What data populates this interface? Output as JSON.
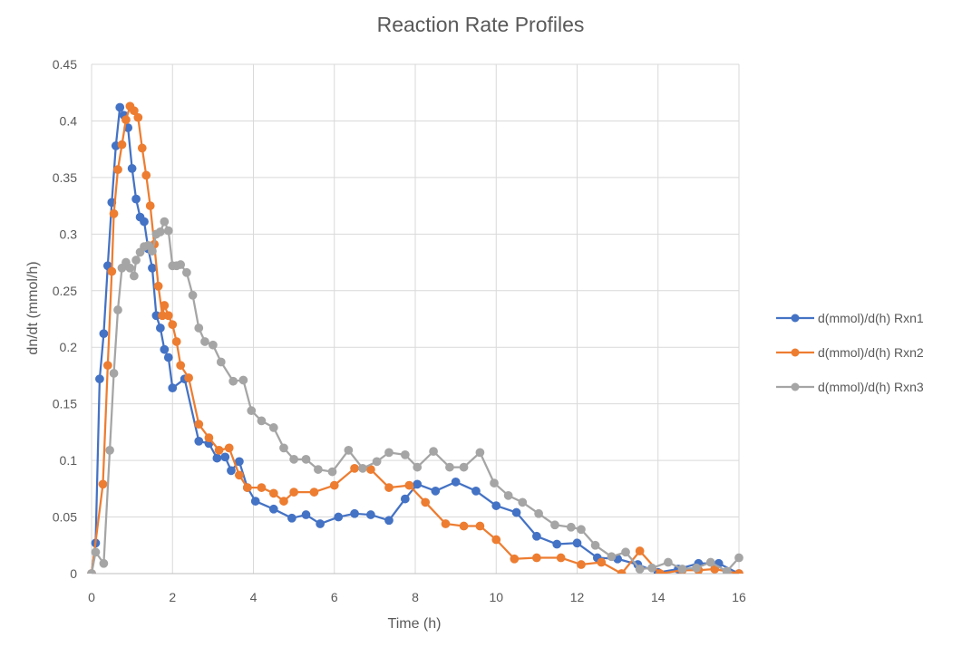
{
  "chart_data": {
    "type": "line",
    "title": "Reaction Rate Profiles",
    "xlabel": "Time (h)",
    "ylabel": "dn/dt (mmol/h)",
    "xlim": [
      0,
      16
    ],
    "ylim": [
      0,
      0.45
    ],
    "xticks": [
      0,
      2,
      4,
      6,
      8,
      10,
      12,
      14,
      16
    ],
    "yticks": [
      0,
      0.05,
      0.1,
      0.15,
      0.2,
      0.25,
      0.3,
      0.35,
      0.4,
      0.45
    ],
    "xtick_labels": [
      "0",
      "2",
      "4",
      "6",
      "8",
      "10",
      "12",
      "14",
      "16"
    ],
    "ytick_labels": [
      "0",
      "0.05",
      "0.1",
      "0.15",
      "0.2",
      "0.25",
      "0.3",
      "0.35",
      "0.4",
      "0.45"
    ],
    "grid": true,
    "legend_position": "right",
    "series": [
      {
        "name": "d(mmol)/d(h) Rxn1",
        "color": "#4472C4",
        "points": [
          [
            0.0,
            0.0
          ],
          [
            0.1,
            0.027
          ],
          [
            0.2,
            0.172
          ],
          [
            0.3,
            0.212
          ],
          [
            0.4,
            0.272
          ],
          [
            0.5,
            0.328
          ],
          [
            0.6,
            0.378
          ],
          [
            0.7,
            0.412
          ],
          [
            0.8,
            0.405
          ],
          [
            0.9,
            0.394
          ],
          [
            1.0,
            0.358
          ],
          [
            1.1,
            0.331
          ],
          [
            1.2,
            0.315
          ],
          [
            1.3,
            0.311
          ],
          [
            1.4,
            0.287
          ],
          [
            1.5,
            0.27
          ],
          [
            1.6,
            0.228
          ],
          [
            1.7,
            0.217
          ],
          [
            1.8,
            0.198
          ],
          [
            1.9,
            0.191
          ],
          [
            2.0,
            0.164
          ],
          [
            2.3,
            0.172
          ],
          [
            2.65,
            0.117
          ],
          [
            2.9,
            0.115
          ],
          [
            3.1,
            0.102
          ],
          [
            3.3,
            0.103
          ],
          [
            3.45,
            0.091
          ],
          [
            3.65,
            0.099
          ],
          [
            3.85,
            0.076
          ],
          [
            4.05,
            0.064
          ],
          [
            4.5,
            0.057
          ],
          [
            4.95,
            0.049
          ],
          [
            5.3,
            0.052
          ],
          [
            5.65,
            0.044
          ],
          [
            6.1,
            0.05
          ],
          [
            6.5,
            0.053
          ],
          [
            6.9,
            0.052
          ],
          [
            7.35,
            0.047
          ],
          [
            7.75,
            0.066
          ],
          [
            8.05,
            0.079
          ],
          [
            8.5,
            0.073
          ],
          [
            9.0,
            0.081
          ],
          [
            9.5,
            0.073
          ],
          [
            10.0,
            0.06
          ],
          [
            10.5,
            0.054
          ],
          [
            11.0,
            0.033
          ],
          [
            11.5,
            0.026
          ],
          [
            12.0,
            0.027
          ],
          [
            12.5,
            0.014
          ],
          [
            13.0,
            0.013
          ],
          [
            13.5,
            0.008
          ],
          [
            14.0,
            0.001
          ],
          [
            14.5,
            0.004
          ],
          [
            15.0,
            0.009
          ],
          [
            15.5,
            0.009
          ],
          [
            16.0,
            0.0
          ]
        ]
      },
      {
        "name": "d(mmol)/d(h) Rxn2",
        "color": "#ED7D31",
        "points": [
          [
            0.0,
            0.0
          ],
          [
            0.28,
            0.079
          ],
          [
            0.4,
            0.184
          ],
          [
            0.5,
            0.267
          ],
          [
            0.55,
            0.318
          ],
          [
            0.65,
            0.357
          ],
          [
            0.75,
            0.379
          ],
          [
            0.85,
            0.401
          ],
          [
            0.95,
            0.413
          ],
          [
            1.05,
            0.409
          ],
          [
            1.15,
            0.403
          ],
          [
            1.25,
            0.376
          ],
          [
            1.35,
            0.352
          ],
          [
            1.45,
            0.325
          ],
          [
            1.55,
            0.291
          ],
          [
            1.65,
            0.254
          ],
          [
            1.75,
            0.228
          ],
          [
            1.8,
            0.237
          ],
          [
            1.9,
            0.228
          ],
          [
            2.0,
            0.22
          ],
          [
            2.1,
            0.205
          ],
          [
            2.2,
            0.184
          ],
          [
            2.4,
            0.173
          ],
          [
            2.65,
            0.132
          ],
          [
            2.9,
            0.12
          ],
          [
            3.15,
            0.109
          ],
          [
            3.4,
            0.111
          ],
          [
            3.65,
            0.087
          ],
          [
            3.85,
            0.076
          ],
          [
            4.2,
            0.076
          ],
          [
            4.5,
            0.071
          ],
          [
            4.75,
            0.064
          ],
          [
            5.0,
            0.072
          ],
          [
            5.5,
            0.072
          ],
          [
            6.0,
            0.078
          ],
          [
            6.5,
            0.093
          ],
          [
            6.9,
            0.092
          ],
          [
            7.35,
            0.076
          ],
          [
            7.85,
            0.078
          ],
          [
            8.25,
            0.063
          ],
          [
            8.75,
            0.044
          ],
          [
            9.2,
            0.042
          ],
          [
            9.6,
            0.042
          ],
          [
            10.0,
            0.03
          ],
          [
            10.45,
            0.013
          ],
          [
            11.0,
            0.014
          ],
          [
            11.6,
            0.014
          ],
          [
            12.1,
            0.008
          ],
          [
            12.6,
            0.01
          ],
          [
            13.1,
            0.0
          ],
          [
            13.55,
            0.02
          ],
          [
            14.05,
            0.0
          ],
          [
            14.6,
            0.003
          ],
          [
            15.0,
            0.003
          ],
          [
            15.4,
            0.004
          ],
          [
            16.0,
            0.0
          ]
        ]
      },
      {
        "name": "d(mmol)/d(h) Rxn3",
        "color": "#A5A5A5",
        "points": [
          [
            0.0,
            0.0
          ],
          [
            0.1,
            0.019
          ],
          [
            0.3,
            0.009
          ],
          [
            0.45,
            0.109
          ],
          [
            0.55,
            0.177
          ],
          [
            0.65,
            0.233
          ],
          [
            0.75,
            0.27
          ],
          [
            0.85,
            0.275
          ],
          [
            0.95,
            0.27
          ],
          [
            1.05,
            0.263
          ],
          [
            1.1,
            0.277
          ],
          [
            1.2,
            0.284
          ],
          [
            1.3,
            0.289
          ],
          [
            1.4,
            0.29
          ],
          [
            1.5,
            0.285
          ],
          [
            1.6,
            0.3
          ],
          [
            1.7,
            0.302
          ],
          [
            1.8,
            0.311
          ],
          [
            1.9,
            0.303
          ],
          [
            2.0,
            0.272
          ],
          [
            2.1,
            0.272
          ],
          [
            2.2,
            0.273
          ],
          [
            2.35,
            0.266
          ],
          [
            2.5,
            0.246
          ],
          [
            2.65,
            0.217
          ],
          [
            2.8,
            0.205
          ],
          [
            3.0,
            0.202
          ],
          [
            3.2,
            0.187
          ],
          [
            3.5,
            0.17
          ],
          [
            3.75,
            0.171
          ],
          [
            3.95,
            0.144
          ],
          [
            4.2,
            0.135
          ],
          [
            4.5,
            0.129
          ],
          [
            4.75,
            0.111
          ],
          [
            5.0,
            0.101
          ],
          [
            5.3,
            0.101
          ],
          [
            5.6,
            0.092
          ],
          [
            5.95,
            0.09
          ],
          [
            6.35,
            0.109
          ],
          [
            6.7,
            0.093
          ],
          [
            7.05,
            0.099
          ],
          [
            7.35,
            0.107
          ],
          [
            7.75,
            0.105
          ],
          [
            8.05,
            0.094
          ],
          [
            8.45,
            0.108
          ],
          [
            8.85,
            0.094
          ],
          [
            9.2,
            0.094
          ],
          [
            9.6,
            0.107
          ],
          [
            9.95,
            0.08
          ],
          [
            10.3,
            0.069
          ],
          [
            10.65,
            0.063
          ],
          [
            11.05,
            0.053
          ],
          [
            11.45,
            0.043
          ],
          [
            11.85,
            0.041
          ],
          [
            12.1,
            0.039
          ],
          [
            12.45,
            0.025
          ],
          [
            12.85,
            0.015
          ],
          [
            13.2,
            0.019
          ],
          [
            13.55,
            0.004
          ],
          [
            13.85,
            0.005
          ],
          [
            14.25,
            0.01
          ],
          [
            14.6,
            0.004
          ],
          [
            14.95,
            0.005
          ],
          [
            15.3,
            0.01
          ],
          [
            15.7,
            0.002
          ],
          [
            16.0,
            0.014
          ]
        ]
      }
    ]
  }
}
